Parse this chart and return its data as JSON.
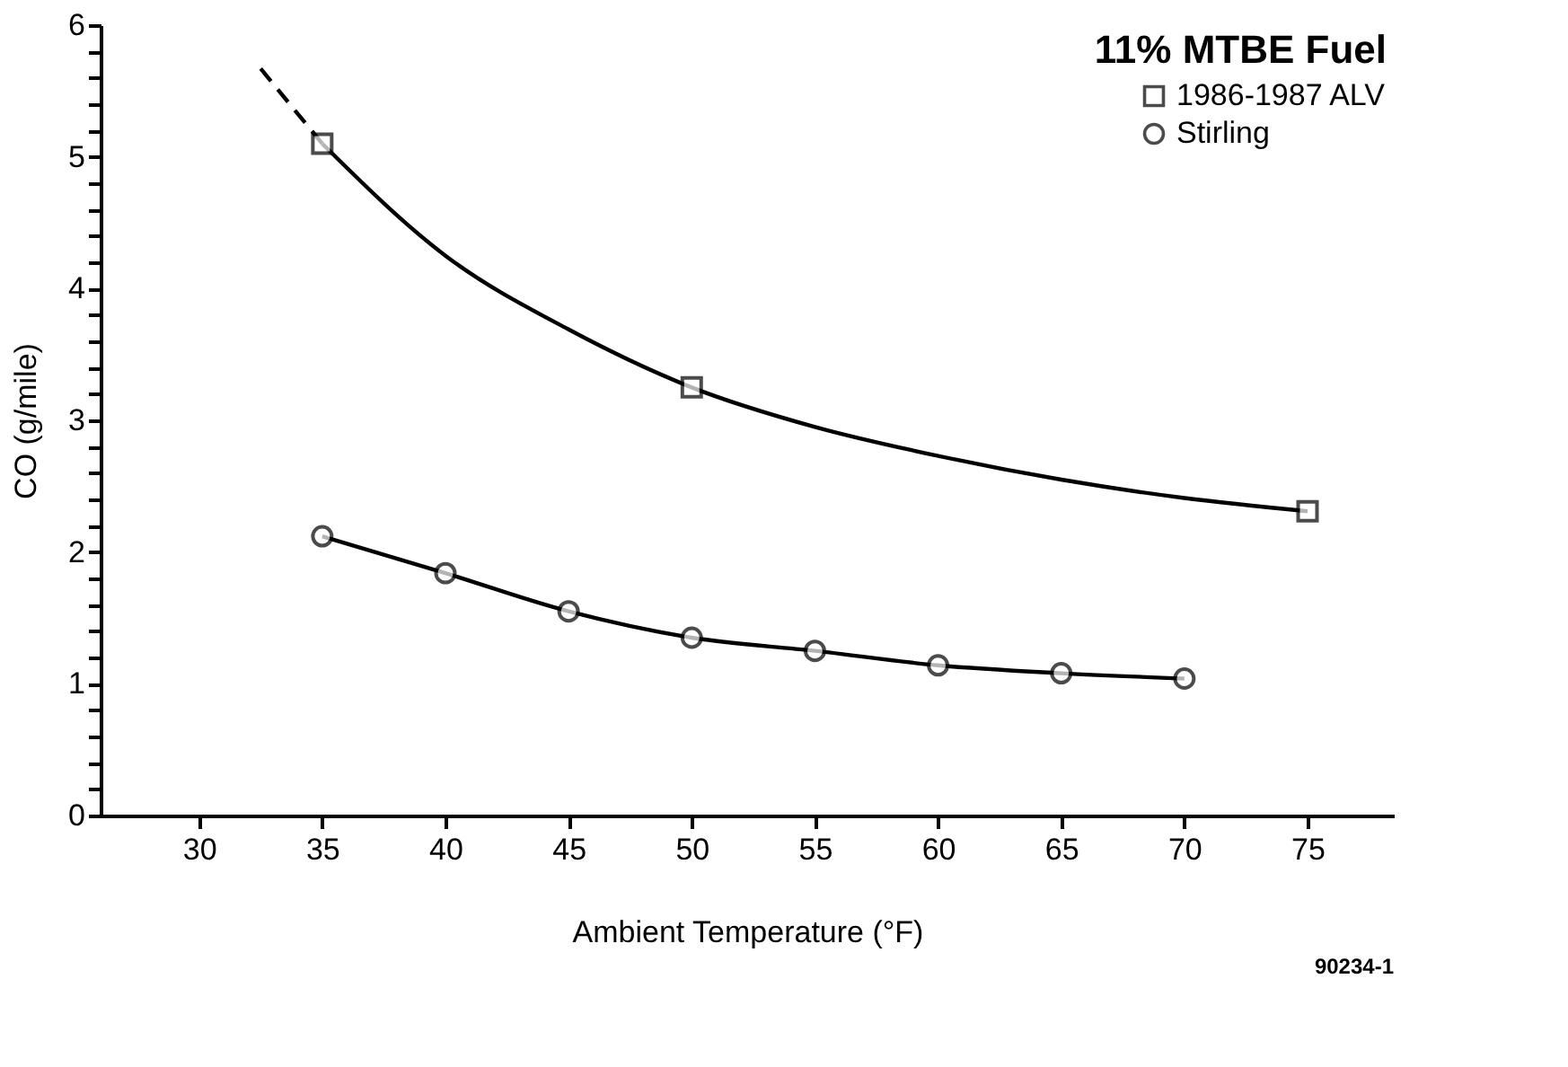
{
  "chart_data": {
    "type": "scatter",
    "xlabel": "Ambient Temperature (°F)",
    "ylabel": "CO (g/mile)",
    "legend_title": "11% MTBE Fuel",
    "annotations": [
      "90234-1"
    ],
    "xlim": [
      26,
      78.5
    ],
    "xticks": [
      30,
      35,
      40,
      45,
      50,
      55,
      60,
      65,
      70,
      75
    ],
    "ylim": [
      0,
      6
    ],
    "yticks": [
      0,
      {
        "value": 0.2,
        "label": null
      },
      {
        "value": 0.4,
        "label": null
      },
      {
        "value": 0.6,
        "label": null
      },
      {
        "value": 0.8,
        "label": null
      },
      1,
      {
        "value": 1.2,
        "label": null
      },
      {
        "value": 1.4,
        "label": null
      },
      {
        "value": 1.6,
        "label": null
      },
      {
        "value": 1.8,
        "label": null
      },
      2,
      {
        "value": 2.2,
        "label": null
      },
      {
        "value": 2.4,
        "label": null
      },
      {
        "value": 2.6,
        "label": null
      },
      {
        "value": 2.8,
        "label": null
      },
      3,
      {
        "value": 3.2,
        "label": null
      },
      {
        "value": 3.4,
        "label": null
      },
      {
        "value": 3.6,
        "label": null
      },
      {
        "value": 3.8,
        "label": null
      },
      4,
      {
        "value": 4.2,
        "label": null
      },
      {
        "value": 4.4,
        "label": null
      },
      {
        "value": 4.6,
        "label": null
      },
      {
        "value": 4.8,
        "label": null
      },
      5,
      {
        "value": 5.2,
        "label": null
      },
      {
        "value": 5.4,
        "label": null
      },
      {
        "value": 5.6,
        "label": null
      },
      {
        "value": 5.8,
        "label": null
      },
      6
    ],
    "grid": false,
    "legend": "top right",
    "series": [
      {
        "name": "1986-1987 ALV",
        "marker": "square",
        "color": "#000000",
        "x": [
          35,
          50,
          75
        ],
        "values": [
          5.1,
          3.25,
          2.31
        ]
      },
      {
        "name": "Stirling",
        "marker": "circle",
        "color": "#000000",
        "x": [
          35,
          40,
          45,
          50,
          55,
          60,
          65,
          70
        ],
        "values": [
          2.12,
          1.84,
          1.55,
          1.35,
          1.25,
          1.14,
          1.08,
          1.04
        ]
      },
      {
        "type": "line",
        "line_style": "solid",
        "color": "#000000",
        "x": [
          35,
          40,
          45,
          50,
          55,
          60,
          65,
          70,
          75
        ],
        "values": [
          5.1,
          4.25,
          3.69,
          3.25,
          2.95,
          2.73,
          2.55,
          2.41,
          2.31
        ]
      },
      {
        "type": "line",
        "line_style": "dashed",
        "color": "#000000",
        "x": [
          32.5,
          35
        ],
        "values": [
          5.67,
          5.1
        ]
      },
      {
        "type": "line",
        "line_style": "solid",
        "color": "#000000",
        "x": [
          35,
          40,
          45,
          50,
          55,
          60,
          65,
          70
        ],
        "values": [
          2.12,
          1.84,
          1.55,
          1.35,
          1.25,
          1.14,
          1.08,
          1.04
        ]
      }
    ]
  }
}
